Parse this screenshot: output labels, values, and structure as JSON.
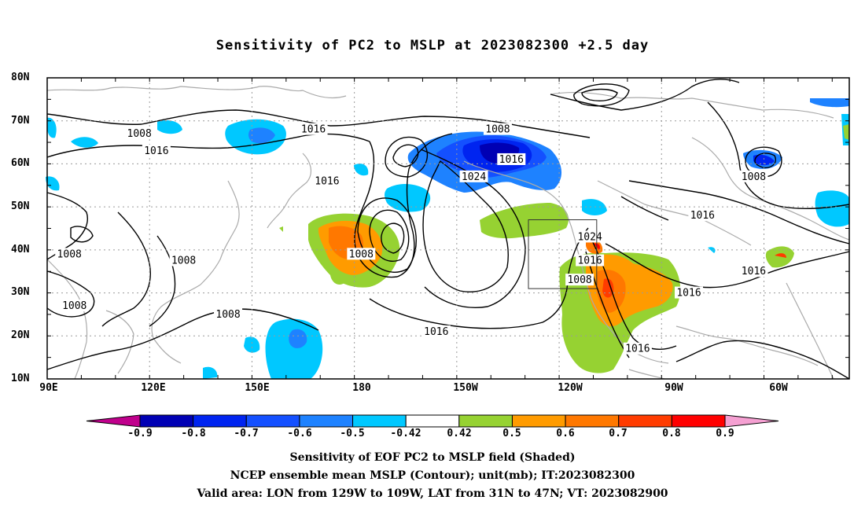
{
  "title": "Sensitivity of PC2 to MSLP at 2023082300 +2.5 day",
  "map": {
    "lon_range_deg_east": [
      90,
      325
    ],
    "lat_range_deg_north": [
      10,
      80
    ],
    "gridlines": "dotted",
    "y_tick_labels": [
      "80N",
      "70N",
      "60N",
      "50N",
      "40N",
      "30N",
      "20N",
      "10N"
    ],
    "x_tick_labels": [
      "90E",
      "120E",
      "150E",
      "180",
      "150W",
      "120W",
      "90W",
      "60W"
    ],
    "contour_labels": [
      {
        "text": "1008",
        "lon": 117,
        "lat": 67
      },
      {
        "text": "1016",
        "lon": 122,
        "lat": 63
      },
      {
        "text": "1016",
        "lon": 168,
        "lat": 68
      },
      {
        "text": "1008",
        "lon": 222,
        "lat": 68
      },
      {
        "text": "1016",
        "lon": 226,
        "lat": 61
      },
      {
        "text": "1024",
        "lon": 215,
        "lat": 57
      },
      {
        "text": "1016",
        "lon": 172,
        "lat": 56
      },
      {
        "text": "1008",
        "lon": 297,
        "lat": 57
      },
      {
        "text": "1016",
        "lon": 282,
        "lat": 48
      },
      {
        "text": "1024",
        "lon": 249,
        "lat": 43
      },
      {
        "text": "1016",
        "lon": 249,
        "lat": 37.5
      },
      {
        "text": "1008",
        "lon": 246,
        "lat": 33
      },
      {
        "text": "1008",
        "lon": 96.5,
        "lat": 39
      },
      {
        "text": "1008",
        "lon": 130,
        "lat": 37.5
      },
      {
        "text": "1008",
        "lon": 182,
        "lat": 39
      },
      {
        "text": "1016",
        "lon": 297,
        "lat": 35
      },
      {
        "text": "1016",
        "lon": 278,
        "lat": 30
      },
      {
        "text": "1008",
        "lon": 98,
        "lat": 27
      },
      {
        "text": "1008",
        "lon": 143,
        "lat": 25
      },
      {
        "text": "1016",
        "lon": 204,
        "lat": 21
      },
      {
        "text": "1016",
        "lon": 263,
        "lat": 17
      }
    ],
    "valid_box": {
      "lon_west": 231,
      "lon_east": 251,
      "lat_south": 31,
      "lat_north": 47
    }
  },
  "colorbar": {
    "colors": [
      "#c0008c",
      "#0000b4",
      "#0024f0",
      "#1450ff",
      "#1e82ff",
      "#00c8ff",
      "#ffffff",
      "#96d232",
      "#ff9b00",
      "#ff7800",
      "#ff3c00",
      "#ff0000",
      "#f5a0d2"
    ],
    "labels": [
      "-0.9",
      "-0.8",
      "-0.7",
      "-0.6",
      "-0.5",
      "-0.42",
      "0.42",
      "0.5",
      "0.6",
      "0.7",
      "0.8",
      "0.9"
    ]
  },
  "footer": {
    "line1": "Sensitivity of EOF PC2 to MSLP field (Shaded)",
    "line2": "NCEP ensemble mean MSLP (Contour); unit(mb); IT:2023082300",
    "line3": "Valid area: LON from 129W to 109W, LAT from 31N to 47N; VT: 2023082900"
  }
}
